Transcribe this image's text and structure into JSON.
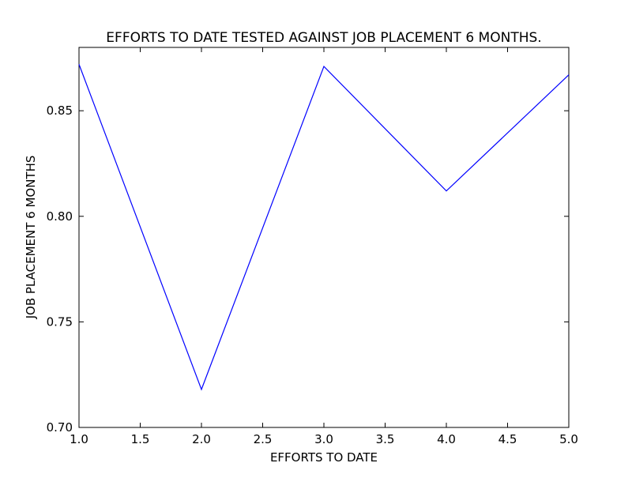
{
  "chart_data": {
    "type": "line",
    "title": "EFFORTS TO DATE TESTED AGAINST JOB PLACEMENT 6 MONTHS.",
    "xlabel": "EFFORTS TO DATE",
    "ylabel": "JOB PLACEMENT 6 MONTHS",
    "xlim": [
      1.0,
      5.0
    ],
    "ylim": [
      0.7,
      0.88
    ],
    "xticks": [
      "1.0",
      "1.5",
      "2.0",
      "2.5",
      "3.0",
      "3.5",
      "4.0",
      "4.5",
      "5.0"
    ],
    "yticks": [
      "0.70",
      "0.75",
      "0.80",
      "0.85"
    ],
    "grid": false,
    "series": [
      {
        "color": "#0000ff",
        "x": [
          1,
          2,
          3,
          4,
          5
        ],
        "y": [
          0.872,
          0.718,
          0.871,
          0.812,
          0.867
        ]
      }
    ]
  }
}
